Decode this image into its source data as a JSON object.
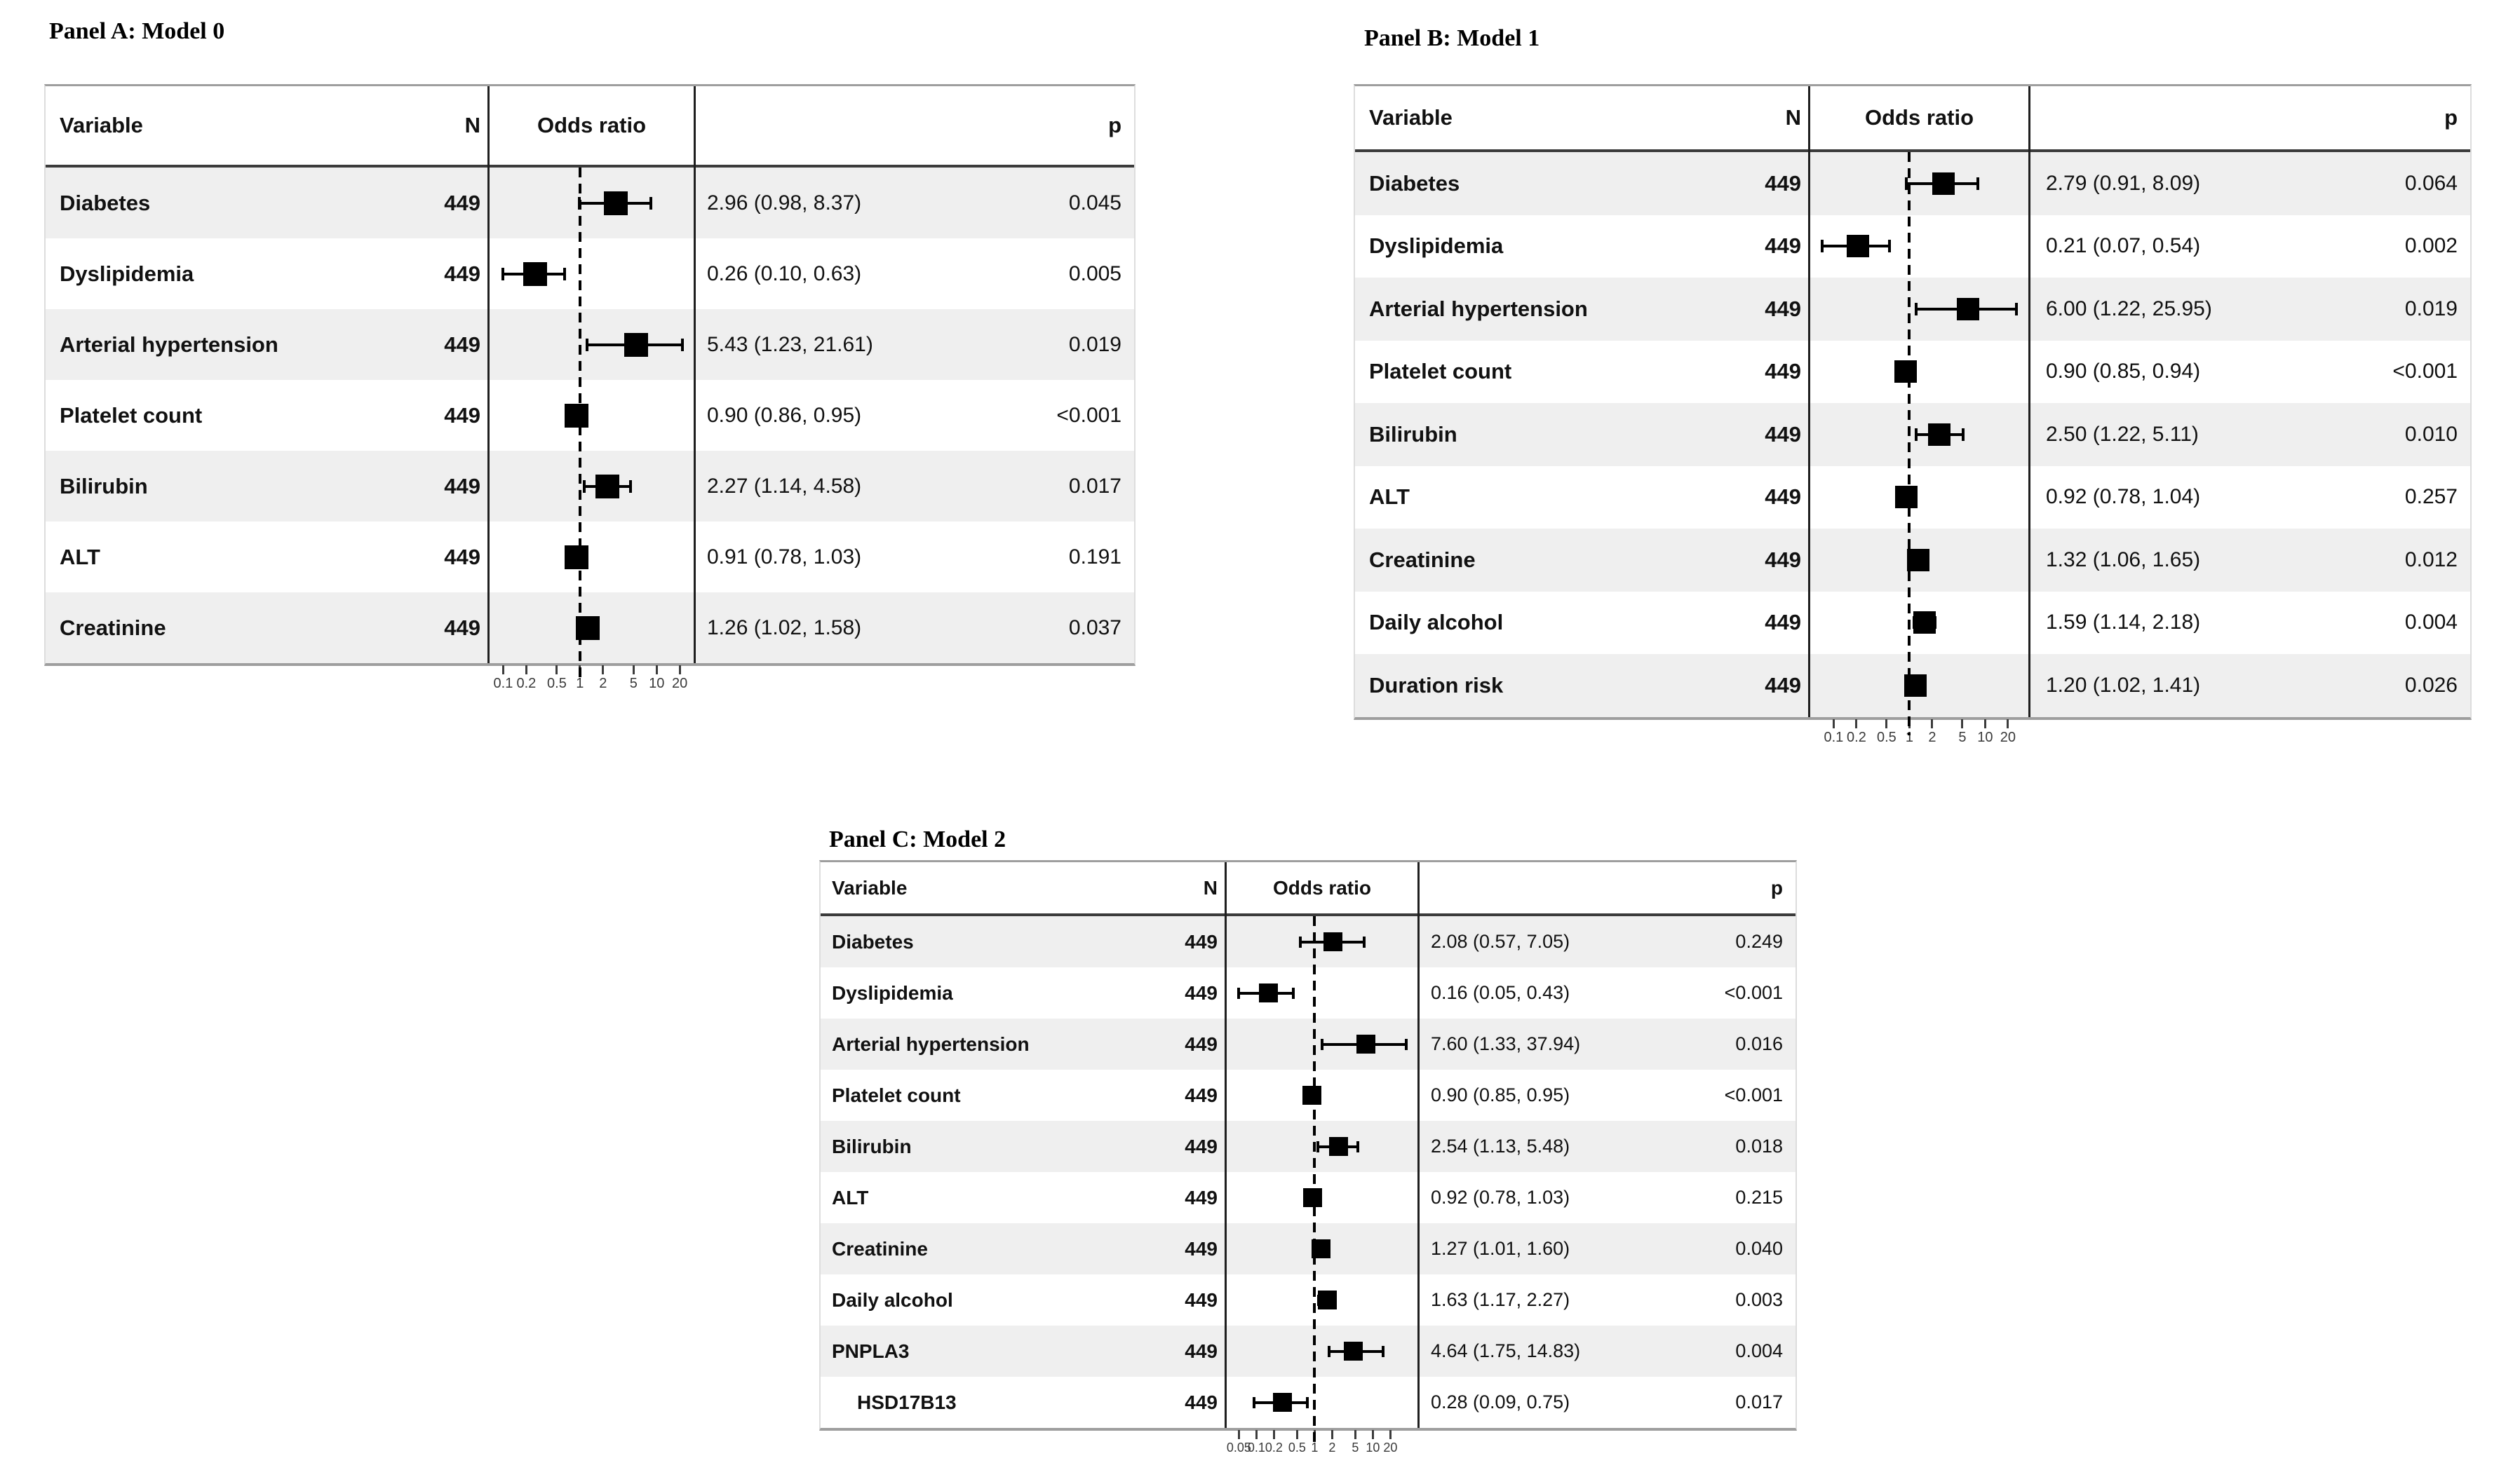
{
  "figure": {
    "background": "#ffffff",
    "colors": {
      "row_stripe": "#efefef",
      "marker": "#000000",
      "header_rule": "#3b3b3b",
      "table_rule": "#9e9e9e",
      "axis_text": "#3a3a3a"
    }
  },
  "chart_data": [
    {
      "type": "forest",
      "panel_label": "A",
      "title": "Panel A: Model 0",
      "columns": {
        "variable": "Variable",
        "n": "N",
        "odds_ratio": "Odds ratio",
        "p": "p"
      },
      "reference_line": 1,
      "axis": {
        "scale": "log",
        "min": 0.065,
        "max": 31,
        "tick_values": [
          0.1,
          0.2,
          0.5,
          1,
          2,
          5,
          10,
          20
        ],
        "ticks": [
          "0.1",
          "0.2",
          "0.5",
          "1",
          "2",
          "5",
          "10",
          "20"
        ]
      },
      "rows": [
        {
          "variable": "Diabetes",
          "n": "449",
          "or": 2.96,
          "ci_low": 0.98,
          "ci_high": 8.37,
          "estimate_label": "2.96 (0.98, 8.37)",
          "p": "0.045"
        },
        {
          "variable": "Dyslipidemia",
          "n": "449",
          "or": 0.26,
          "ci_low": 0.1,
          "ci_high": 0.63,
          "estimate_label": "0.26 (0.10, 0.63)",
          "p": "0.005"
        },
        {
          "variable": "Arterial hypertension",
          "n": "449",
          "or": 5.43,
          "ci_low": 1.23,
          "ci_high": 21.61,
          "estimate_label": "5.43 (1.23, 21.61)",
          "p": "0.019"
        },
        {
          "variable": "Platelet count",
          "n": "449",
          "or": 0.9,
          "ci_low": 0.86,
          "ci_high": 0.95,
          "estimate_label": "0.90 (0.86, 0.95)",
          "p": "<0.001"
        },
        {
          "variable": "Bilirubin",
          "n": "449",
          "or": 2.27,
          "ci_low": 1.14,
          "ci_high": 4.58,
          "estimate_label": "2.27 (1.14, 4.58)",
          "p": "0.017"
        },
        {
          "variable": "ALT",
          "n": "449",
          "or": 0.91,
          "ci_low": 0.78,
          "ci_high": 1.03,
          "estimate_label": "0.91 (0.78, 1.03)",
          "p": "0.191"
        },
        {
          "variable": "Creatinine",
          "n": "449",
          "or": 1.26,
          "ci_low": 1.02,
          "ci_high": 1.58,
          "estimate_label": "1.26 (1.02, 1.58)",
          "p": "0.037"
        }
      ]
    },
    {
      "type": "forest",
      "panel_label": "B",
      "title": "Panel B: Model 1",
      "columns": {
        "variable": "Variable",
        "n": "N",
        "odds_ratio": "Odds ratio",
        "p": "p"
      },
      "reference_line": 1,
      "axis": {
        "scale": "log",
        "min": 0.048,
        "max": 38,
        "tick_values": [
          0.1,
          0.2,
          0.5,
          1,
          2,
          5,
          10,
          20
        ],
        "ticks": [
          "0.1",
          "0.2",
          "0.5",
          "1",
          "2",
          "5",
          "10",
          "20"
        ]
      },
      "rows": [
        {
          "variable": "Diabetes",
          "n": "449",
          "or": 2.79,
          "ci_low": 0.91,
          "ci_high": 8.09,
          "estimate_label": "2.79 (0.91, 8.09)",
          "p": "0.064"
        },
        {
          "variable": "Dyslipidemia",
          "n": "449",
          "or": 0.21,
          "ci_low": 0.07,
          "ci_high": 0.54,
          "estimate_label": "0.21 (0.07, 0.54)",
          "p": "0.002"
        },
        {
          "variable": "Arterial hypertension",
          "n": "449",
          "or": 6.0,
          "ci_low": 1.22,
          "ci_high": 25.95,
          "estimate_label": "6.00 (1.22, 25.95)",
          "p": "0.019"
        },
        {
          "variable": "Platelet count",
          "n": "449",
          "or": 0.9,
          "ci_low": 0.85,
          "ci_high": 0.94,
          "estimate_label": "0.90 (0.85, 0.94)",
          "p": "<0.001"
        },
        {
          "variable": "Bilirubin",
          "n": "449",
          "or": 2.5,
          "ci_low": 1.22,
          "ci_high": 5.11,
          "estimate_label": "2.50 (1.22, 5.11)",
          "p": "0.010"
        },
        {
          "variable": "ALT",
          "n": "449",
          "or": 0.92,
          "ci_low": 0.78,
          "ci_high": 1.04,
          "estimate_label": "0.92 (0.78, 1.04)",
          "p": "0.257"
        },
        {
          "variable": "Creatinine",
          "n": "449",
          "or": 1.32,
          "ci_low": 1.06,
          "ci_high": 1.65,
          "estimate_label": "1.32 (1.06, 1.65)",
          "p": "0.012"
        },
        {
          "variable": "Daily alcohol",
          "n": "449",
          "or": 1.59,
          "ci_low": 1.14,
          "ci_high": 2.18,
          "estimate_label": "1.59 (1.14, 2.18)",
          "p": "0.004"
        },
        {
          "variable": "Duration risk",
          "n": "449",
          "or": 1.2,
          "ci_low": 1.02,
          "ci_high": 1.41,
          "estimate_label": "1.20 (1.02, 1.41)",
          "p": "0.026"
        }
      ]
    },
    {
      "type": "forest",
      "panel_label": "C",
      "title": "Panel C: Model 2",
      "columns": {
        "variable": "Variable",
        "n": "N",
        "odds_ratio": "Odds ratio",
        "p": "p"
      },
      "reference_line": 1,
      "axis": {
        "scale": "log",
        "min": 0.03,
        "max": 60,
        "tick_values": [
          0.05,
          0.1,
          0.2,
          0.5,
          1,
          2,
          5,
          10,
          20
        ],
        "ticks": [
          "0.05",
          "0.1",
          "0.2",
          "0.5",
          "1",
          "2",
          "5",
          "10",
          "20"
        ]
      },
      "rows": [
        {
          "variable": "Diabetes",
          "n": "449",
          "or": 2.08,
          "ci_low": 0.57,
          "ci_high": 7.05,
          "estimate_label": "2.08 (0.57, 7.05)",
          "p": "0.249"
        },
        {
          "variable": "Dyslipidemia",
          "n": "449",
          "or": 0.16,
          "ci_low": 0.05,
          "ci_high": 0.43,
          "estimate_label": "0.16 (0.05, 0.43)",
          "p": "<0.001"
        },
        {
          "variable": "Arterial hypertension",
          "n": "449",
          "or": 7.6,
          "ci_low": 1.33,
          "ci_high": 37.94,
          "estimate_label": "7.60 (1.33, 37.94)",
          "p": "0.016"
        },
        {
          "variable": "Platelet count",
          "n": "449",
          "or": 0.9,
          "ci_low": 0.85,
          "ci_high": 0.95,
          "estimate_label": "0.90 (0.85, 0.95)",
          "p": "<0.001"
        },
        {
          "variable": "Bilirubin",
          "n": "449",
          "or": 2.54,
          "ci_low": 1.13,
          "ci_high": 5.48,
          "estimate_label": "2.54 (1.13, 5.48)",
          "p": "0.018"
        },
        {
          "variable": "ALT",
          "n": "449",
          "or": 0.92,
          "ci_low": 0.78,
          "ci_high": 1.03,
          "estimate_label": "0.92 (0.78, 1.03)",
          "p": "0.215"
        },
        {
          "variable": "Creatinine",
          "n": "449",
          "or": 1.27,
          "ci_low": 1.01,
          "ci_high": 1.6,
          "estimate_label": "1.27 (1.01, 1.60)",
          "p": "0.040"
        },
        {
          "variable": "Daily alcohol",
          "n": "449",
          "or": 1.63,
          "ci_low": 1.17,
          "ci_high": 2.27,
          "estimate_label": "1.63 (1.17, 2.27)",
          "p": "0.003"
        },
        {
          "variable": "PNPLA3",
          "n": "449",
          "or": 4.64,
          "ci_low": 1.75,
          "ci_high": 14.83,
          "estimate_label": "4.64 (1.75, 14.83)",
          "p": "0.004"
        },
        {
          "variable": "HSD17B13",
          "indent": true,
          "n": "449",
          "or": 0.28,
          "ci_low": 0.09,
          "ci_high": 0.75,
          "estimate_label": "0.28 (0.09, 0.75)",
          "p": "0.017"
        }
      ]
    }
  ]
}
